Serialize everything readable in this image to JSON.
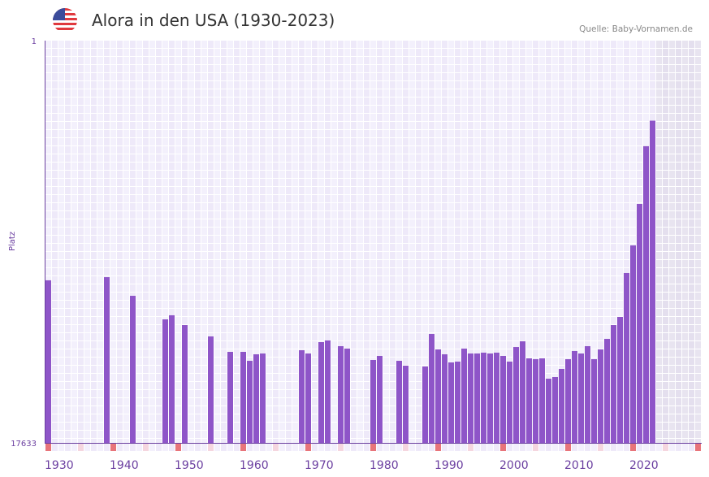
{
  "header": {
    "title": "Alora in den USA (1930-2023)",
    "source": "Quelle: Baby-Vornamen.de",
    "flag_icon": "usa-flag-icon"
  },
  "chart_data": {
    "type": "bar",
    "title": "Alora in den USA (1930-2023)",
    "xlabel": "",
    "ylabel": "Platz",
    "y_scale": "log",
    "y_inverted": true,
    "ylim": [
      17633,
      1
    ],
    "y_tick_labels": [
      "1",
      "17633"
    ],
    "x_range": [
      1930,
      2030
    ],
    "x_tick_labels": [
      "1930",
      "1940",
      "1950",
      "1960",
      "1970",
      "1980",
      "1990",
      "2000",
      "2010",
      "2020"
    ],
    "shaded_future_from": 2024,
    "bar_color": "#8e55c8",
    "grid": true,
    "series": [
      {
        "name": "Platz",
        "points": [
          {
            "year": 1930,
            "rank": 339
          },
          {
            "year": 1939,
            "rank": 314
          },
          {
            "year": 1943,
            "rank": 494
          },
          {
            "year": 1948,
            "rank": 876
          },
          {
            "year": 1949,
            "rank": 793
          },
          {
            "year": 1951,
            "rank": 1006
          },
          {
            "year": 1955,
            "rank": 1326
          },
          {
            "year": 1958,
            "rank": 1930
          },
          {
            "year": 1960,
            "rank": 1930
          },
          {
            "year": 1961,
            "rank": 2399
          },
          {
            "year": 1962,
            "rank": 2048
          },
          {
            "year": 1963,
            "rank": 2008
          },
          {
            "year": 1969,
            "rank": 1855
          },
          {
            "year": 1970,
            "rank": 2008
          },
          {
            "year": 1972,
            "rank": 1523
          },
          {
            "year": 1973,
            "rank": 1464
          },
          {
            "year": 1975,
            "rank": 1681
          },
          {
            "year": 1976,
            "rank": 1784
          },
          {
            "year": 1980,
            "rank": 2351
          },
          {
            "year": 1981,
            "rank": 2130
          },
          {
            "year": 1984,
            "rank": 2399
          },
          {
            "year": 1985,
            "rank": 2700
          },
          {
            "year": 1988,
            "rank": 2754
          },
          {
            "year": 1989,
            "rank": 1250
          },
          {
            "year": 1990,
            "rank": 1819
          },
          {
            "year": 1991,
            "rank": 2048
          },
          {
            "year": 1992,
            "rank": 2495
          },
          {
            "year": 1993,
            "rank": 2446
          },
          {
            "year": 1994,
            "rank": 1784
          },
          {
            "year": 1995,
            "rank": 2008
          },
          {
            "year": 1996,
            "rank": 2008
          },
          {
            "year": 1997,
            "rank": 1968
          },
          {
            "year": 1998,
            "rank": 2008
          },
          {
            "year": 1999,
            "rank": 1968
          },
          {
            "year": 2000,
            "rank": 2130
          },
          {
            "year": 2001,
            "rank": 2446
          },
          {
            "year": 2002,
            "rank": 1715
          },
          {
            "year": 2003,
            "rank": 1493
          },
          {
            "year": 2004,
            "rank": 2261
          },
          {
            "year": 2005,
            "rank": 2306
          },
          {
            "year": 2006,
            "rank": 2261
          },
          {
            "year": 2007,
            "rank": 3704
          },
          {
            "year": 2008,
            "rank": 3560
          },
          {
            "year": 2009,
            "rank": 2922
          },
          {
            "year": 2010,
            "rank": 2306
          },
          {
            "year": 2011,
            "rank": 1892
          },
          {
            "year": 2012,
            "rank": 2008
          },
          {
            "year": 2013,
            "rank": 1681
          },
          {
            "year": 2014,
            "rank": 2306
          },
          {
            "year": 2015,
            "rank": 1819
          },
          {
            "year": 2016,
            "rank": 1407
          },
          {
            "year": 2017,
            "rank": 1006
          },
          {
            "year": 2018,
            "rank": 825
          },
          {
            "year": 2019,
            "rank": 284
          },
          {
            "year": 2020,
            "rank": 145
          },
          {
            "year": 2021,
            "rank": 53
          },
          {
            "year": 2022,
            "rank": 13
          },
          {
            "year": 2023,
            "rank": 7
          }
        ]
      }
    ]
  }
}
